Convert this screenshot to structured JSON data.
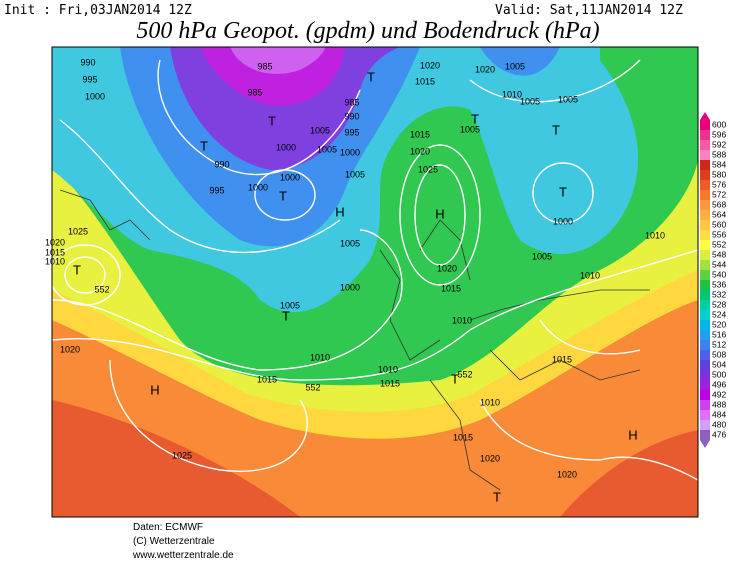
{
  "header": {
    "init": "Init : Fri,03JAN2014 12Z",
    "valid": "Valid: Sat,11JAN2014 12Z",
    "title": "500 hPa Geopot. (gpdm) und Bodendruck (hPa)"
  },
  "colorbar": {
    "ticks": [
      600,
      596,
      592,
      588,
      584,
      580,
      576,
      572,
      568,
      564,
      560,
      556,
      552,
      548,
      544,
      540,
      536,
      532,
      528,
      524,
      520,
      516,
      512,
      508,
      504,
      500,
      496,
      492,
      488,
      484,
      480,
      476
    ],
    "colors": [
      "#e8007a",
      "#f0308c",
      "#f85aa0",
      "#ff80c0",
      "#d02818",
      "#e03c1e",
      "#f05a28",
      "#f87830",
      "#ff9640",
      "#ffb040",
      "#ffc840",
      "#ffe040",
      "#ffff40",
      "#d8f040",
      "#a0e040",
      "#60d040",
      "#20c040",
      "#00c870",
      "#00d0a0",
      "#00d0d0",
      "#00b8e8",
      "#20a0f0",
      "#4080f0",
      "#5060e8",
      "#6040e0",
      "#8030e0",
      "#a020e0",
      "#c000e0",
      "#d040f0",
      "#e070f8",
      "#d0a0ff",
      "#9060c0"
    ]
  },
  "map_labels": [
    "990",
    "995",
    "1000",
    "985",
    "985",
    "1000",
    "1005",
    "1005",
    "990",
    "995",
    "1000",
    "1000",
    "985",
    "990",
    "995",
    "1000",
    "1005",
    "1015",
    "1020",
    "1015",
    "1020",
    "1025",
    "1010",
    "1005",
    "1005",
    "1005",
    "1020",
    "1005",
    "1000",
    "1005",
    "1010",
    "1010",
    "1015",
    "1020",
    "1025",
    "1020",
    "1015",
    "1010",
    "552",
    "1005",
    "1000",
    "1005",
    "1010",
    "1015",
    "552",
    "1010",
    "1015",
    "1020",
    "1015",
    "1010",
    "552",
    "1010",
    "1015",
    "1020",
    "1020",
    "1025",
    "H",
    "H",
    "H",
    "H",
    "T",
    "T",
    "T",
    "T",
    "T",
    "T",
    "T",
    "T",
    "T",
    "T",
    "T"
  ],
  "footer": {
    "source": "Daten: ECMWF",
    "copyright": "(C) Wetterzentrale",
    "url": "www.wetterzentrale.de"
  }
}
